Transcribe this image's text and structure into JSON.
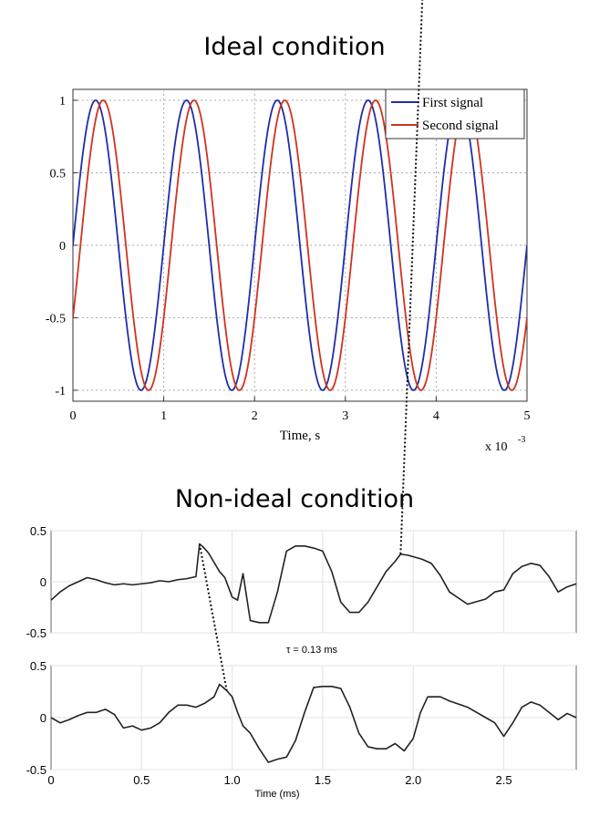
{
  "titles": {
    "top": "Ideal condition",
    "bottom": "Non-ideal condition"
  },
  "chart_data": [
    {
      "type": "line",
      "xlabel": "Time, s",
      "x_multiplier": "x 10^-3",
      "x_multiplier_base": "x 10",
      "x_multiplier_exp": "-3",
      "xlim": [
        0,
        5
      ],
      "ylim": [
        -1,
        1
      ],
      "x_ticks": [
        "0",
        "1",
        "2",
        "3",
        "4",
        "5"
      ],
      "y_ticks": [
        "1",
        "0.5",
        "0",
        "-0.5",
        "-1"
      ],
      "grid": true,
      "legend_position": "top-right",
      "series": [
        {
          "name": "First signal",
          "color": "#1f2ea8",
          "x_ms": [
            0,
            0.25,
            0.5,
            0.75,
            1,
            1.25,
            1.5,
            1.75,
            2,
            2.25,
            2.5,
            2.75,
            3,
            3.25,
            3.5,
            3.75,
            4,
            4.25,
            4.5,
            4.75,
            5
          ],
          "y": [
            0,
            1,
            0,
            -1,
            0,
            1,
            0,
            -1,
            0,
            1,
            0,
            -1,
            0,
            1,
            0,
            -1,
            0,
            1,
            0,
            -1,
            0
          ]
        },
        {
          "name": "Second signal",
          "color": "#d0321e",
          "x_ms": [
            0,
            0.08,
            0.33,
            0.58,
            0.83,
            1.08,
            1.33,
            1.58,
            1.83,
            2.08,
            2.33,
            2.58,
            2.83,
            3.08,
            3.33,
            3.58,
            3.83,
            4.08,
            4.33,
            4.58,
            4.83,
            5
          ],
          "y": [
            -0.48,
            0,
            1,
            0,
            -1,
            0,
            1,
            0,
            -1,
            0,
            1,
            0,
            -1,
            0,
            1,
            0,
            -1,
            0,
            1,
            0,
            -1,
            -0.48
          ]
        }
      ]
    },
    {
      "type": "line",
      "xlabel": "Time (ms)",
      "xlim": [
        0,
        2.9
      ],
      "x_ticks": [
        "0",
        "0.5",
        "1.0",
        "1.5",
        "2.0",
        "2.5"
      ],
      "y_ticks": [
        "0.5",
        "0",
        "-0.5"
      ],
      "annotation": "τ = 0.13 ms",
      "grid": true,
      "panels": [
        {
          "ylim": [
            -0.5,
            0.5
          ],
          "x": [
            0,
            0.05,
            0.1,
            0.15,
            0.2,
            0.25,
            0.3,
            0.35,
            0.4,
            0.45,
            0.5,
            0.55,
            0.6,
            0.65,
            0.7,
            0.75,
            0.8,
            0.82,
            0.84,
            0.87,
            0.9,
            0.93,
            0.96,
            1.0,
            1.03,
            1.06,
            1.1,
            1.15,
            1.2,
            1.25,
            1.3,
            1.35,
            1.4,
            1.45,
            1.5,
            1.55,
            1.6,
            1.65,
            1.7,
            1.75,
            1.8,
            1.85,
            1.9,
            1.93,
            1.97,
            2.05,
            2.1,
            2.15,
            2.2,
            2.3,
            2.4,
            2.45,
            2.5,
            2.55,
            2.6,
            2.65,
            2.7,
            2.75,
            2.8,
            2.85,
            2.9
          ],
          "y": [
            -0.18,
            -0.1,
            -0.04,
            0.0,
            0.04,
            0.02,
            -0.01,
            -0.03,
            -0.02,
            -0.03,
            -0.02,
            -0.01,
            0.01,
            0.0,
            0.02,
            0.03,
            0.05,
            0.37,
            0.34,
            0.28,
            0.19,
            0.1,
            0.04,
            -0.15,
            -0.18,
            0.08,
            -0.38,
            -0.4,
            -0.4,
            -0.1,
            0.3,
            0.35,
            0.35,
            0.33,
            0.3,
            0.1,
            -0.2,
            -0.3,
            -0.3,
            -0.2,
            -0.05,
            0.1,
            0.2,
            0.27,
            0.26,
            0.22,
            0.18,
            0.06,
            -0.1,
            -0.22,
            -0.17,
            -0.1,
            -0.08,
            0.08,
            0.15,
            0.18,
            0.16,
            0.05,
            -0.1,
            -0.05,
            -0.02
          ]
        },
        {
          "ylim": [
            -0.5,
            0.5
          ],
          "x": [
            0,
            0.05,
            0.1,
            0.15,
            0.2,
            0.25,
            0.3,
            0.35,
            0.4,
            0.45,
            0.5,
            0.55,
            0.6,
            0.65,
            0.7,
            0.75,
            0.8,
            0.85,
            0.9,
            0.93,
            0.97,
            1.0,
            1.03,
            1.06,
            1.1,
            1.15,
            1.2,
            1.25,
            1.3,
            1.35,
            1.4,
            1.45,
            1.5,
            1.55,
            1.6,
            1.65,
            1.7,
            1.75,
            1.8,
            1.85,
            1.9,
            1.95,
            2.0,
            2.04,
            2.08,
            2.15,
            2.2,
            2.3,
            2.4,
            2.45,
            2.5,
            2.55,
            2.6,
            2.65,
            2.7,
            2.75,
            2.8,
            2.85,
            2.9
          ],
          "y": [
            0.0,
            -0.05,
            -0.02,
            0.02,
            0.05,
            0.05,
            0.08,
            0.03,
            -0.1,
            -0.08,
            -0.12,
            -0.1,
            -0.05,
            0.05,
            0.12,
            0.12,
            0.1,
            0.14,
            0.2,
            0.32,
            0.26,
            0.2,
            0.05,
            -0.08,
            -0.15,
            -0.3,
            -0.43,
            -0.4,
            -0.38,
            -0.22,
            0.05,
            0.29,
            0.3,
            0.3,
            0.28,
            0.1,
            -0.15,
            -0.28,
            -0.3,
            -0.3,
            -0.25,
            -0.32,
            -0.2,
            0.05,
            0.2,
            0.2,
            0.16,
            0.1,
            0.0,
            -0.05,
            -0.18,
            -0.05,
            0.1,
            0.15,
            0.12,
            0.05,
            -0.02,
            0.04,
            0.0
          ]
        }
      ]
    }
  ]
}
